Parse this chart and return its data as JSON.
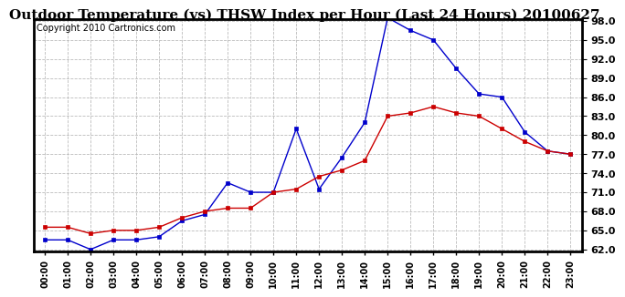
{
  "title": "Outdoor Temperature (vs) THSW Index per Hour (Last 24 Hours) 20100627",
  "copyright": "Copyright 2010 Cartronics.com",
  "hours": [
    "00:00",
    "01:00",
    "02:00",
    "03:00",
    "04:00",
    "05:00",
    "06:00",
    "07:00",
    "08:00",
    "09:00",
    "10:00",
    "11:00",
    "12:00",
    "13:00",
    "14:00",
    "15:00",
    "16:00",
    "17:00",
    "18:00",
    "19:00",
    "20:00",
    "21:00",
    "22:00",
    "23:00"
  ],
  "temp_red": [
    65.5,
    65.5,
    64.5,
    65.0,
    65.0,
    65.5,
    67.0,
    68.0,
    68.5,
    68.5,
    71.0,
    71.5,
    73.5,
    74.5,
    76.0,
    83.0,
    83.5,
    84.5,
    83.5,
    83.0,
    81.0,
    79.0,
    77.5,
    77.0
  ],
  "thsw_blue": [
    63.5,
    63.5,
    62.0,
    63.5,
    63.5,
    64.0,
    66.5,
    67.5,
    72.5,
    71.0,
    71.0,
    81.0,
    71.5,
    76.5,
    82.0,
    98.5,
    96.5,
    95.0,
    90.5,
    86.5,
    86.0,
    80.5,
    77.5,
    77.0
  ],
  "ylim_min": 62.0,
  "ylim_max": 98.0,
  "yticks": [
    62.0,
    65.0,
    68.0,
    71.0,
    74.0,
    77.0,
    80.0,
    83.0,
    86.0,
    89.0,
    92.0,
    95.0,
    98.0
  ],
  "bg_color": "#ffffff",
  "plot_bg": "#ffffff",
  "grid_color": "#bbbbbb",
  "red_color": "#cc0000",
  "blue_color": "#0000cc",
  "title_color": "#000000",
  "border_color": "#000000",
  "title_fontsize": 11,
  "tick_fontsize": 8,
  "copyright_fontsize": 7
}
